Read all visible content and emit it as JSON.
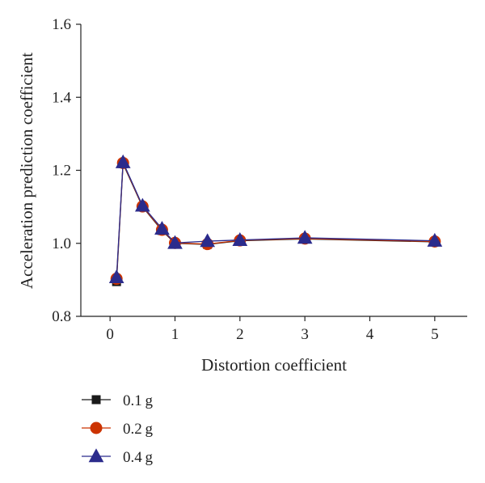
{
  "chart_data": {
    "type": "line",
    "title": "",
    "xlabel": "Distortion coefficient",
    "ylabel": "Acceleration prediction coefficient",
    "xlim": [
      -0.45,
      5.5
    ],
    "ylim": [
      0.8,
      1.6
    ],
    "xticks": [
      0,
      1,
      2,
      3,
      4,
      5
    ],
    "yticks": [
      0.8,
      1.0,
      1.2,
      1.4,
      1.6
    ],
    "xtick_labels": [
      "0",
      "1",
      "2",
      "3",
      "4",
      "5"
    ],
    "ytick_labels": [
      "0.8",
      "1.0",
      "1.2",
      "1.4",
      "1.6"
    ],
    "grid": false,
    "legend_position": "bottom-left",
    "x": [
      0.1,
      0.2,
      0.5,
      0.8,
      1.0,
      1.5,
      2.0,
      3.0,
      5.0
    ],
    "series": [
      {
        "name": "0.1 g",
        "marker": "square",
        "color": "#1a1a1a",
        "values": [
          0.895,
          1.218,
          1.1,
          1.035,
          1.0,
          0.997,
          1.007,
          1.012,
          1.004
        ]
      },
      {
        "name": "0.2 g",
        "marker": "circle",
        "color": "#cc3300",
        "values": [
          0.903,
          1.22,
          1.101,
          1.037,
          1.001,
          0.998,
          1.008,
          1.013,
          1.005
        ]
      },
      {
        "name": "0.4 g",
        "marker": "triangle",
        "color": "#2b2b8c",
        "values": [
          0.907,
          1.222,
          1.103,
          1.04,
          1.001,
          1.006,
          1.009,
          1.015,
          1.007
        ]
      }
    ]
  }
}
